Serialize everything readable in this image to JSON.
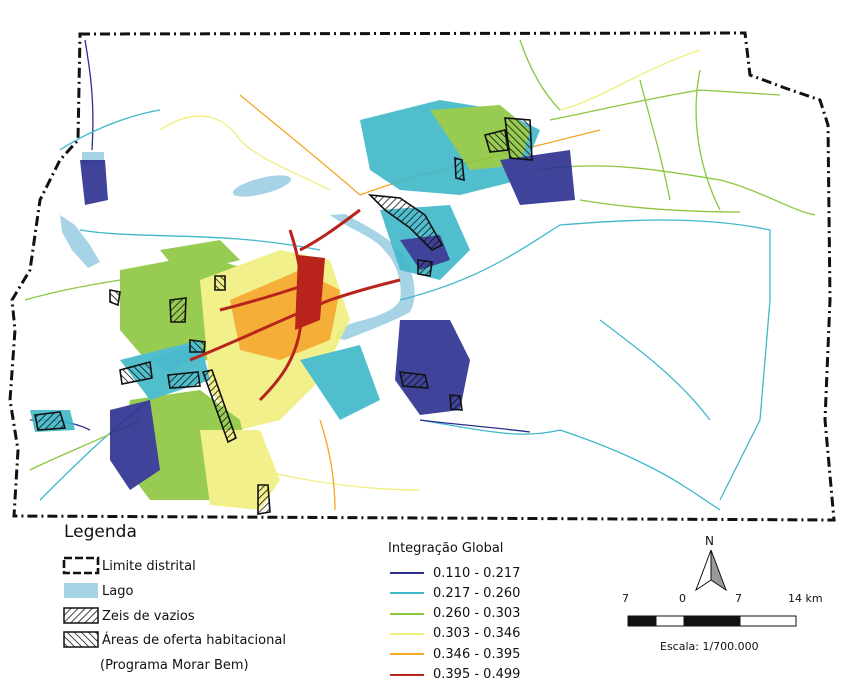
{
  "legend": {
    "title": "Legenda",
    "items": [
      {
        "label": "Limite distrital",
        "icon": "dashed-boundary-icon"
      },
      {
        "label": "Lago",
        "icon": "lake-swatch-icon",
        "color": "#a6d3e6"
      },
      {
        "label": "Zeis de vazios",
        "icon": "hatch-backslash-icon"
      },
      {
        "label": "Áreas de oferta habitacional",
        "icon": "hatch-slash-icon"
      }
    ],
    "note": "(Programa Morar Bem)"
  },
  "integration": {
    "title": "Integração Global",
    "classes": [
      {
        "range": "0.110 - 0.217",
        "color": "#2b2f8f"
      },
      {
        "range": "0.217 - 0.260",
        "color": "#3fb8c9"
      },
      {
        "range": "0.260 - 0.303",
        "color": "#8cc63f"
      },
      {
        "range": "0.303 - 0.346",
        "color": "#f0ef7e"
      },
      {
        "range": "0.346 - 0.395",
        "color": "#f5a623"
      },
      {
        "range": "0.395 - 0.499",
        "color": "#b8241c"
      }
    ]
  },
  "scale": {
    "ticks": [
      "7",
      "0",
      "7",
      "14 km"
    ],
    "caption": "Escala: 1/700.000"
  },
  "north": {
    "label": "N",
    "icon": "north-arrow-icon"
  },
  "colors": {
    "lake": "#a6d3e6",
    "boundary": "#111111"
  }
}
